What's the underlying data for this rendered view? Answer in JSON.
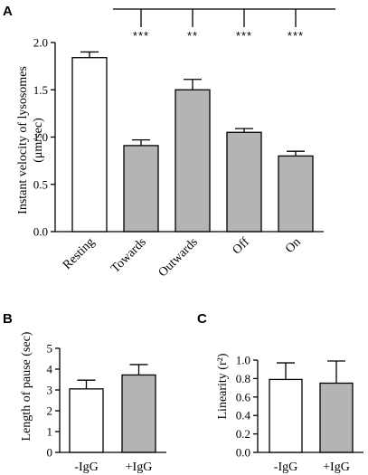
{
  "colors": {
    "white_bar": "#ffffff",
    "gray_bar": "#b4b4b4",
    "stroke": "#000000"
  },
  "panels": [
    {
      "letter": "A",
      "ylabel_line1": "Instant velocity of lysosomes",
      "ylabel_line2": "(μm/sec)"
    },
    {
      "letter": "B",
      "ylabel_line1": "Length of pause (sec)"
    },
    {
      "letter": "C",
      "ylabel_line1": "Linearity (r²)"
    }
  ],
  "chart_data": [
    {
      "type": "bar",
      "panel": "A",
      "title": "",
      "ylabel": "Instant velocity of lysosomes (μm/sec)",
      "ylim": [
        0,
        2.0
      ],
      "yticks": [
        "0.0",
        "0.5",
        "1.0",
        "1.5",
        "2.0"
      ],
      "categories": [
        "Resting",
        "Towards",
        "Outwards",
        "Off",
        "On"
      ],
      "values": [
        1.84,
        0.91,
        1.5,
        1.05,
        0.8
      ],
      "errors": [
        0.06,
        0.06,
        0.11,
        0.04,
        0.05
      ],
      "bar_fill": [
        "white",
        "gray",
        "gray",
        "gray",
        "gray"
      ],
      "significance": [
        "",
        "***",
        "**",
        "***",
        "***"
      ],
      "tick_label_rotation_deg": -45
    },
    {
      "type": "bar",
      "panel": "B",
      "title": "",
      "ylabel": "Length of pause (sec)",
      "ylim": [
        0,
        5
      ],
      "yticks": [
        "0",
        "1",
        "2",
        "3",
        "4",
        "5"
      ],
      "categories": [
        "-IgG",
        "+IgG"
      ],
      "values": [
        3.05,
        3.72
      ],
      "errors": [
        0.42,
        0.5
      ],
      "bar_fill": [
        "white",
        "gray"
      ]
    },
    {
      "type": "bar",
      "panel": "C",
      "title": "",
      "ylabel": "Linearity (r²)",
      "ylim": [
        0,
        1.0
      ],
      "yticks": [
        "0.0",
        "0.2",
        "0.4",
        "0.6",
        "0.8",
        "1.0"
      ],
      "categories": [
        "-IgG",
        "+IgG"
      ],
      "values": [
        0.79,
        0.75
      ],
      "errors": [
        0.18,
        0.24
      ],
      "bar_fill": [
        "white",
        "gray"
      ]
    }
  ]
}
